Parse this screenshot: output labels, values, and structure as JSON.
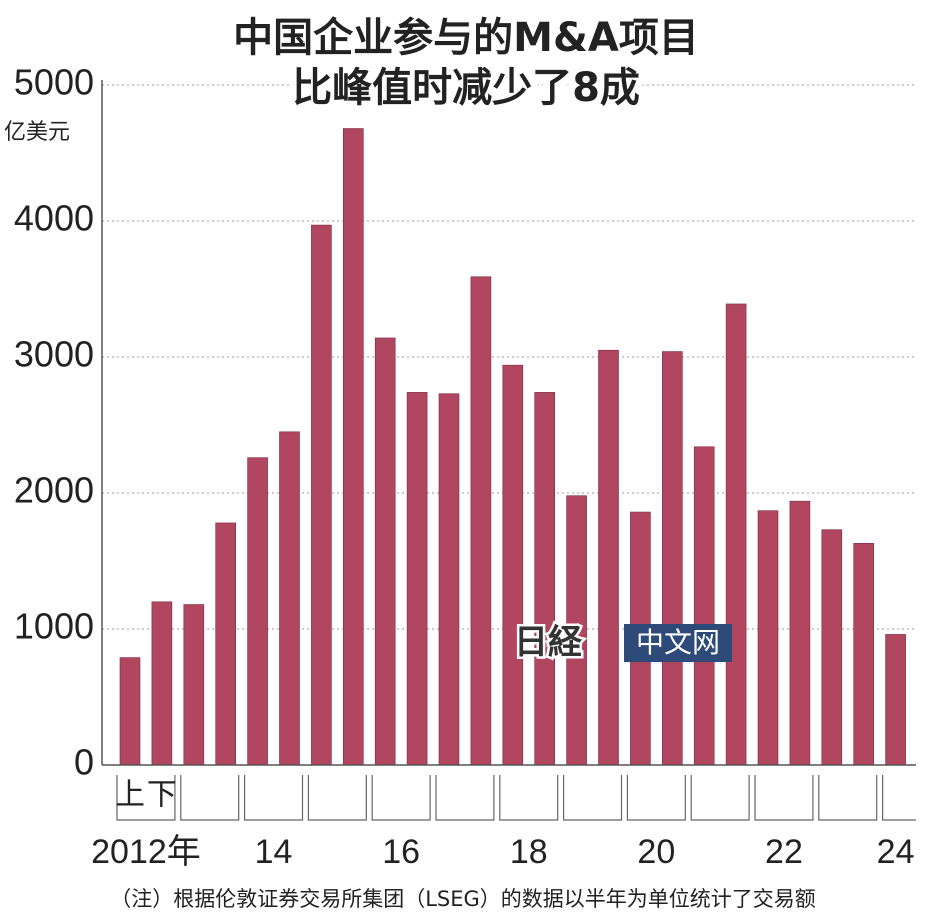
{
  "chart_data": {
    "type": "bar",
    "title": "中国企业参与的M&A项目",
    "subtitle": "比峰值时减少了8成",
    "y_unit": "亿美元",
    "categories": [
      null,
      null,
      null,
      null,
      null,
      null,
      null,
      null,
      null,
      null,
      null,
      null,
      null,
      null,
      null,
      null,
      null,
      null,
      null,
      null,
      null,
      null,
      null,
      null,
      null
    ],
    "values": [
      790,
      1200,
      1180,
      1780,
      2260,
      2450,
      3970,
      4680,
      3140,
      2740,
      2730,
      3590,
      2940,
      2740,
      1980,
      3050,
      1860,
      3040,
      2340,
      3390,
      1870,
      1940,
      1730,
      1630,
      960
    ],
    "color": "#b04660",
    "half_labels": [
      "上",
      "下"
    ],
    "year_labels": [
      "2012年",
      "14",
      "16",
      "18",
      "20",
      "22",
      "24"
    ],
    "ylim": [
      0,
      5000
    ],
    "yticks": [
      0,
      1000,
      2000,
      3000,
      4000,
      5000
    ],
    "grid": true,
    "note": "（注）根据伦敦证券交易所集团（LSEG）的数据以半年为单位统计了交易额",
    "watermark": [
      "日経",
      "中文网"
    ]
  }
}
